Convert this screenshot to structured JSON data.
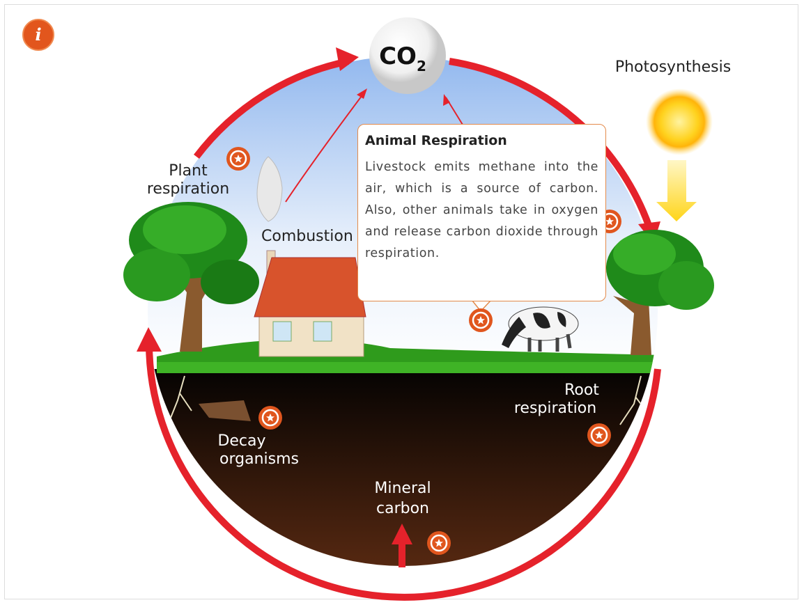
{
  "info_icon": "i",
  "co2": {
    "label": "CO",
    "subscript": "2"
  },
  "labels": {
    "photosynthesis": [
      "Photosynthesis"
    ],
    "plant_respiration": [
      "Plant",
      "respiration"
    ],
    "combustion": [
      "Combustion"
    ],
    "root_respiration": [
      "Root",
      "respiration"
    ],
    "decay_organisms": [
      "Decay",
      "organisms"
    ],
    "mineral_carbon": [
      "Mineral",
      "carbon"
    ]
  },
  "popup": {
    "title": "Animal Respiration",
    "body": "Livestock emits methane into the air, which is a source of carbon. Also, other animals take in oxygen and release carbon dioxide through respiration."
  }
}
